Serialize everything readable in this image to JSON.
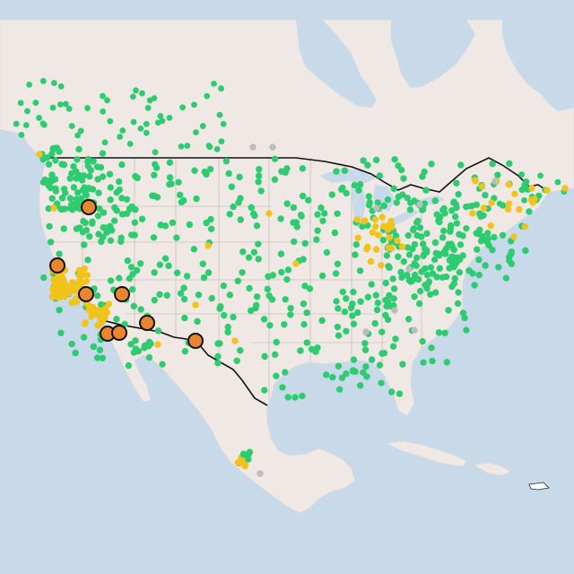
{
  "map": {
    "region": "North America",
    "colors": {
      "water": "#c8d9ea",
      "land": "#efe8e4",
      "land_shade": "#e6ddd8",
      "lakes": "#c8d9ea",
      "state_lines": "#b9b2ae",
      "us_border": "#111111"
    },
    "marker_categories": [
      {
        "key": "good",
        "color": "#2ecc71",
        "label": ""
      },
      {
        "key": "moderate",
        "color": "#f2c31b",
        "label": ""
      },
      {
        "key": "unhealthy_sensitive",
        "color": "#e8862d",
        "label": ""
      },
      {
        "key": "unhealthy",
        "color": "#e74c3c",
        "label": ""
      },
      {
        "key": "no_data",
        "color": "#bdbdbd",
        "label": ""
      }
    ],
    "notes": ""
  }
}
